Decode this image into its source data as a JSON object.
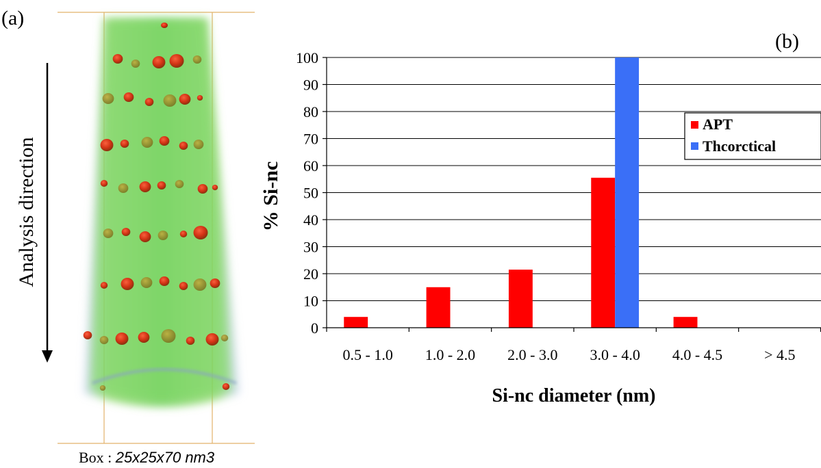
{
  "panel_a": {
    "label": "(a)",
    "direction_label": "Analysis direction",
    "box_prefix": "Box : ",
    "box_dims": "25x25x70 nm3"
  },
  "colors": {
    "apt": "#ff0000",
    "theoretical": "#3a6ff7",
    "grid": "#000000",
    "tomo_green": "#7ed957",
    "tomo_blue": "#b9c9f0",
    "precipitate": "#d62a10"
  },
  "chart_data": {
    "type": "bar",
    "panel_label": "(b)",
    "categories": [
      "0.5 - 1.0",
      "1.0 - 2.0",
      "2.0 - 3.0",
      "3.0 - 4.0",
      "4.0 - 4.5",
      "> 4.5"
    ],
    "series": [
      {
        "name": "APT",
        "values": [
          4,
          15,
          21.5,
          55.5,
          4,
          0
        ]
      },
      {
        "name": "Theoretical",
        "values": [
          0,
          0,
          0,
          100,
          0,
          0
        ]
      }
    ],
    "legend_labels": [
      "APT",
      "Thcorctical"
    ],
    "xlabel": "Si-nc diameter (nm)",
    "ylabel": "% Si-nc",
    "ylim": [
      0,
      100
    ],
    "yticks": [
      0,
      10,
      20,
      30,
      40,
      50,
      60,
      70,
      80,
      90,
      100
    ],
    "grid": true,
    "legend_position": "right"
  }
}
